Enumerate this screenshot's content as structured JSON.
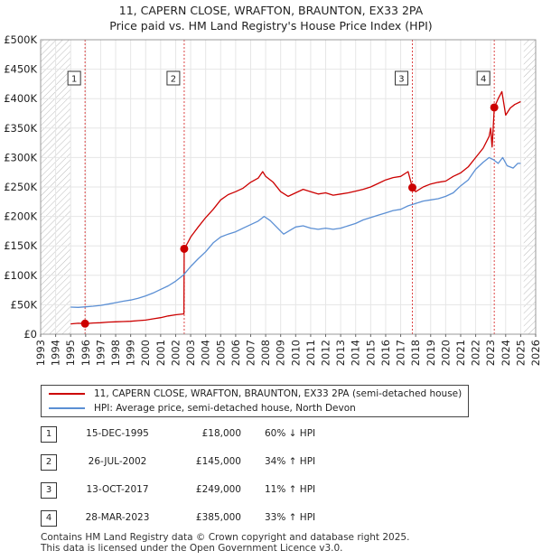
{
  "title_line1": "11, CAPERN CLOSE, WRAFTON, BRAUNTON, EX33 2PA",
  "title_line2": "Price paid vs. HM Land Registry's House Price Index (HPI)",
  "chart_data": {
    "type": "line",
    "title": "Price paid vs. HM Land Registry's House Price Index (HPI)",
    "xlabel": "",
    "ylabel": "",
    "xlim": [
      1993,
      2026
    ],
    "ylim": [
      0,
      500000
    ],
    "x_ticks": [
      "1993",
      "1994",
      "1995",
      "1996",
      "1997",
      "1998",
      "1999",
      "2000",
      "2001",
      "2002",
      "2003",
      "2004",
      "2005",
      "2006",
      "2007",
      "2008",
      "2009",
      "2010",
      "2011",
      "2012",
      "2013",
      "2014",
      "2015",
      "2016",
      "2017",
      "2018",
      "2019",
      "2020",
      "2021",
      "2022",
      "2023",
      "2024",
      "2025",
      "2026"
    ],
    "y_ticks": [
      {
        "value": 0,
        "label": "£0"
      },
      {
        "value": 50000,
        "label": "£50K"
      },
      {
        "value": 100000,
        "label": "£100K"
      },
      {
        "value": 150000,
        "label": "£150K"
      },
      {
        "value": 200000,
        "label": "£200K"
      },
      {
        "value": 250000,
        "label": "£250K"
      },
      {
        "value": 300000,
        "label": "£300K"
      },
      {
        "value": 350000,
        "label": "£350K"
      },
      {
        "value": 400000,
        "label": "£400K"
      },
      {
        "value": 450000,
        "label": "£450K"
      },
      {
        "value": 500000,
        "label": "£500K"
      }
    ],
    "grid": true,
    "hatched_regions": [
      [
        1993,
        1995.0
      ],
      [
        2025.2,
        2026
      ]
    ],
    "series": [
      {
        "name": "11, CAPERN CLOSE, WRAFTON, BRAUNTON, EX33 2PA (semi-detached house)",
        "color": "#cc0000",
        "points": [
          [
            1995.0,
            17500
          ],
          [
            1995.5,
            18500
          ],
          [
            1995.96,
            18000
          ],
          [
            1996.5,
            19000
          ],
          [
            1997.0,
            19500
          ],
          [
            1997.5,
            20500
          ],
          [
            1998.0,
            21000
          ],
          [
            1998.5,
            21500
          ],
          [
            1999.0,
            22000
          ],
          [
            1999.5,
            23000
          ],
          [
            2000.0,
            24000
          ],
          [
            2000.5,
            26000
          ],
          [
            2001.0,
            28000
          ],
          [
            2001.5,
            31000
          ],
          [
            2002.0,
            33000
          ],
          [
            2002.55,
            34500
          ],
          [
            2002.57,
            145000
          ],
          [
            2002.8,
            155000
          ],
          [
            2003.0,
            165000
          ],
          [
            2003.5,
            182000
          ],
          [
            2004.0,
            198000
          ],
          [
            2004.5,
            212000
          ],
          [
            2005.0,
            228000
          ],
          [
            2005.5,
            237000
          ],
          [
            2006.0,
            242000
          ],
          [
            2006.5,
            248000
          ],
          [
            2007.0,
            258000
          ],
          [
            2007.5,
            265000
          ],
          [
            2007.8,
            276000
          ],
          [
            2008.0,
            268000
          ],
          [
            2008.5,
            258000
          ],
          [
            2009.0,
            242000
          ],
          [
            2009.5,
            234000
          ],
          [
            2010.0,
            240000
          ],
          [
            2010.5,
            246000
          ],
          [
            2011.0,
            242000
          ],
          [
            2011.5,
            238000
          ],
          [
            2012.0,
            240000
          ],
          [
            2012.5,
            236000
          ],
          [
            2013.0,
            238000
          ],
          [
            2013.5,
            240000
          ],
          [
            2014.0,
            243000
          ],
          [
            2014.5,
            246000
          ],
          [
            2015.0,
            250000
          ],
          [
            2015.5,
            256000
          ],
          [
            2016.0,
            262000
          ],
          [
            2016.5,
            266000
          ],
          [
            2017.0,
            268000
          ],
          [
            2017.5,
            276000
          ],
          [
            2017.78,
            249000
          ],
          [
            2018.0,
            242000
          ],
          [
            2018.5,
            250000
          ],
          [
            2019.0,
            255000
          ],
          [
            2019.5,
            258000
          ],
          [
            2020.0,
            260000
          ],
          [
            2020.5,
            268000
          ],
          [
            2021.0,
            274000
          ],
          [
            2021.5,
            284000
          ],
          [
            2022.0,
            300000
          ],
          [
            2022.5,
            316000
          ],
          [
            2022.9,
            336000
          ],
          [
            2023.0,
            350000
          ],
          [
            2023.1,
            318000
          ],
          [
            2023.24,
            385000
          ],
          [
            2023.5,
            400000
          ],
          [
            2023.75,
            412000
          ],
          [
            2024.0,
            372000
          ],
          [
            2024.3,
            384000
          ],
          [
            2024.6,
            390000
          ],
          [
            2025.0,
            395000
          ]
        ]
      },
      {
        "name": "HPI: Average price, semi-detached house, North Devon",
        "color": "#5b8fd4",
        "points": [
          [
            1995.0,
            46000
          ],
          [
            1995.5,
            45500
          ],
          [
            1996.0,
            46500
          ],
          [
            1996.5,
            47500
          ],
          [
            1997.0,
            49000
          ],
          [
            1997.5,
            51000
          ],
          [
            1998.0,
            53500
          ],
          [
            1998.5,
            56000
          ],
          [
            1999.0,
            58000
          ],
          [
            1999.5,
            61000
          ],
          [
            2000.0,
            65000
          ],
          [
            2000.5,
            70000
          ],
          [
            2001.0,
            76000
          ],
          [
            2001.5,
            82000
          ],
          [
            2002.0,
            90000
          ],
          [
            2002.5,
            100000
          ],
          [
            2003.0,
            115000
          ],
          [
            2003.5,
            128000
          ],
          [
            2004.0,
            140000
          ],
          [
            2004.5,
            155000
          ],
          [
            2005.0,
            165000
          ],
          [
            2005.5,
            170000
          ],
          [
            2006.0,
            174000
          ],
          [
            2006.5,
            180000
          ],
          [
            2007.0,
            186000
          ],
          [
            2007.5,
            192000
          ],
          [
            2007.9,
            200000
          ],
          [
            2008.3,
            193000
          ],
          [
            2008.8,
            180000
          ],
          [
            2009.2,
            170000
          ],
          [
            2009.6,
            176000
          ],
          [
            2010.0,
            182000
          ],
          [
            2010.5,
            184000
          ],
          [
            2011.0,
            180000
          ],
          [
            2011.5,
            178000
          ],
          [
            2012.0,
            180000
          ],
          [
            2012.5,
            178000
          ],
          [
            2013.0,
            180000
          ],
          [
            2013.5,
            184000
          ],
          [
            2014.0,
            188000
          ],
          [
            2014.5,
            194000
          ],
          [
            2015.0,
            198000
          ],
          [
            2015.5,
            202000
          ],
          [
            2016.0,
            206000
          ],
          [
            2016.5,
            210000
          ],
          [
            2017.0,
            212000
          ],
          [
            2017.5,
            218000
          ],
          [
            2018.0,
            222000
          ],
          [
            2018.5,
            226000
          ],
          [
            2019.0,
            228000
          ],
          [
            2019.5,
            230000
          ],
          [
            2020.0,
            234000
          ],
          [
            2020.5,
            240000
          ],
          [
            2021.0,
            252000
          ],
          [
            2021.5,
            262000
          ],
          [
            2022.0,
            280000
          ],
          [
            2022.5,
            292000
          ],
          [
            2022.9,
            300000
          ],
          [
            2023.2,
            296000
          ],
          [
            2023.5,
            290000
          ],
          [
            2023.8,
            300000
          ],
          [
            2024.1,
            286000
          ],
          [
            2024.5,
            282000
          ],
          [
            2024.8,
            290000
          ],
          [
            2025.0,
            290000
          ]
        ]
      }
    ],
    "sales": [
      {
        "num": "1",
        "x": 1995.96,
        "value": 18000
      },
      {
        "num": "2",
        "x": 2002.57,
        "value": 145000
      },
      {
        "num": "3",
        "x": 2017.78,
        "value": 249000
      },
      {
        "num": "4",
        "x": 2023.24,
        "value": 385000
      }
    ]
  },
  "legend": {
    "item1": "11, CAPERN CLOSE, WRAFTON, BRAUNTON, EX33 2PA (semi-detached house)",
    "item2": "HPI: Average price, semi-detached house, North Devon",
    "color1": "#cc0000",
    "color2": "#5b8fd4"
  },
  "sales_table": [
    {
      "num": "1",
      "date": "15-DEC-1995",
      "price": "£18,000",
      "hpi": "60% ↓ HPI"
    },
    {
      "num": "2",
      "date": "26-JUL-2002",
      "price": "£145,000",
      "hpi": "34% ↑ HPI"
    },
    {
      "num": "3",
      "date": "13-OCT-2017",
      "price": "£249,000",
      "hpi": "11% ↑ HPI"
    },
    {
      "num": "4",
      "date": "28-MAR-2023",
      "price": "£385,000",
      "hpi": "33% ↑ HPI"
    }
  ],
  "footer_line1": "Contains HM Land Registry data © Crown copyright and database right 2025.",
  "footer_line2": "This data is licensed under the Open Government Licence v3.0."
}
